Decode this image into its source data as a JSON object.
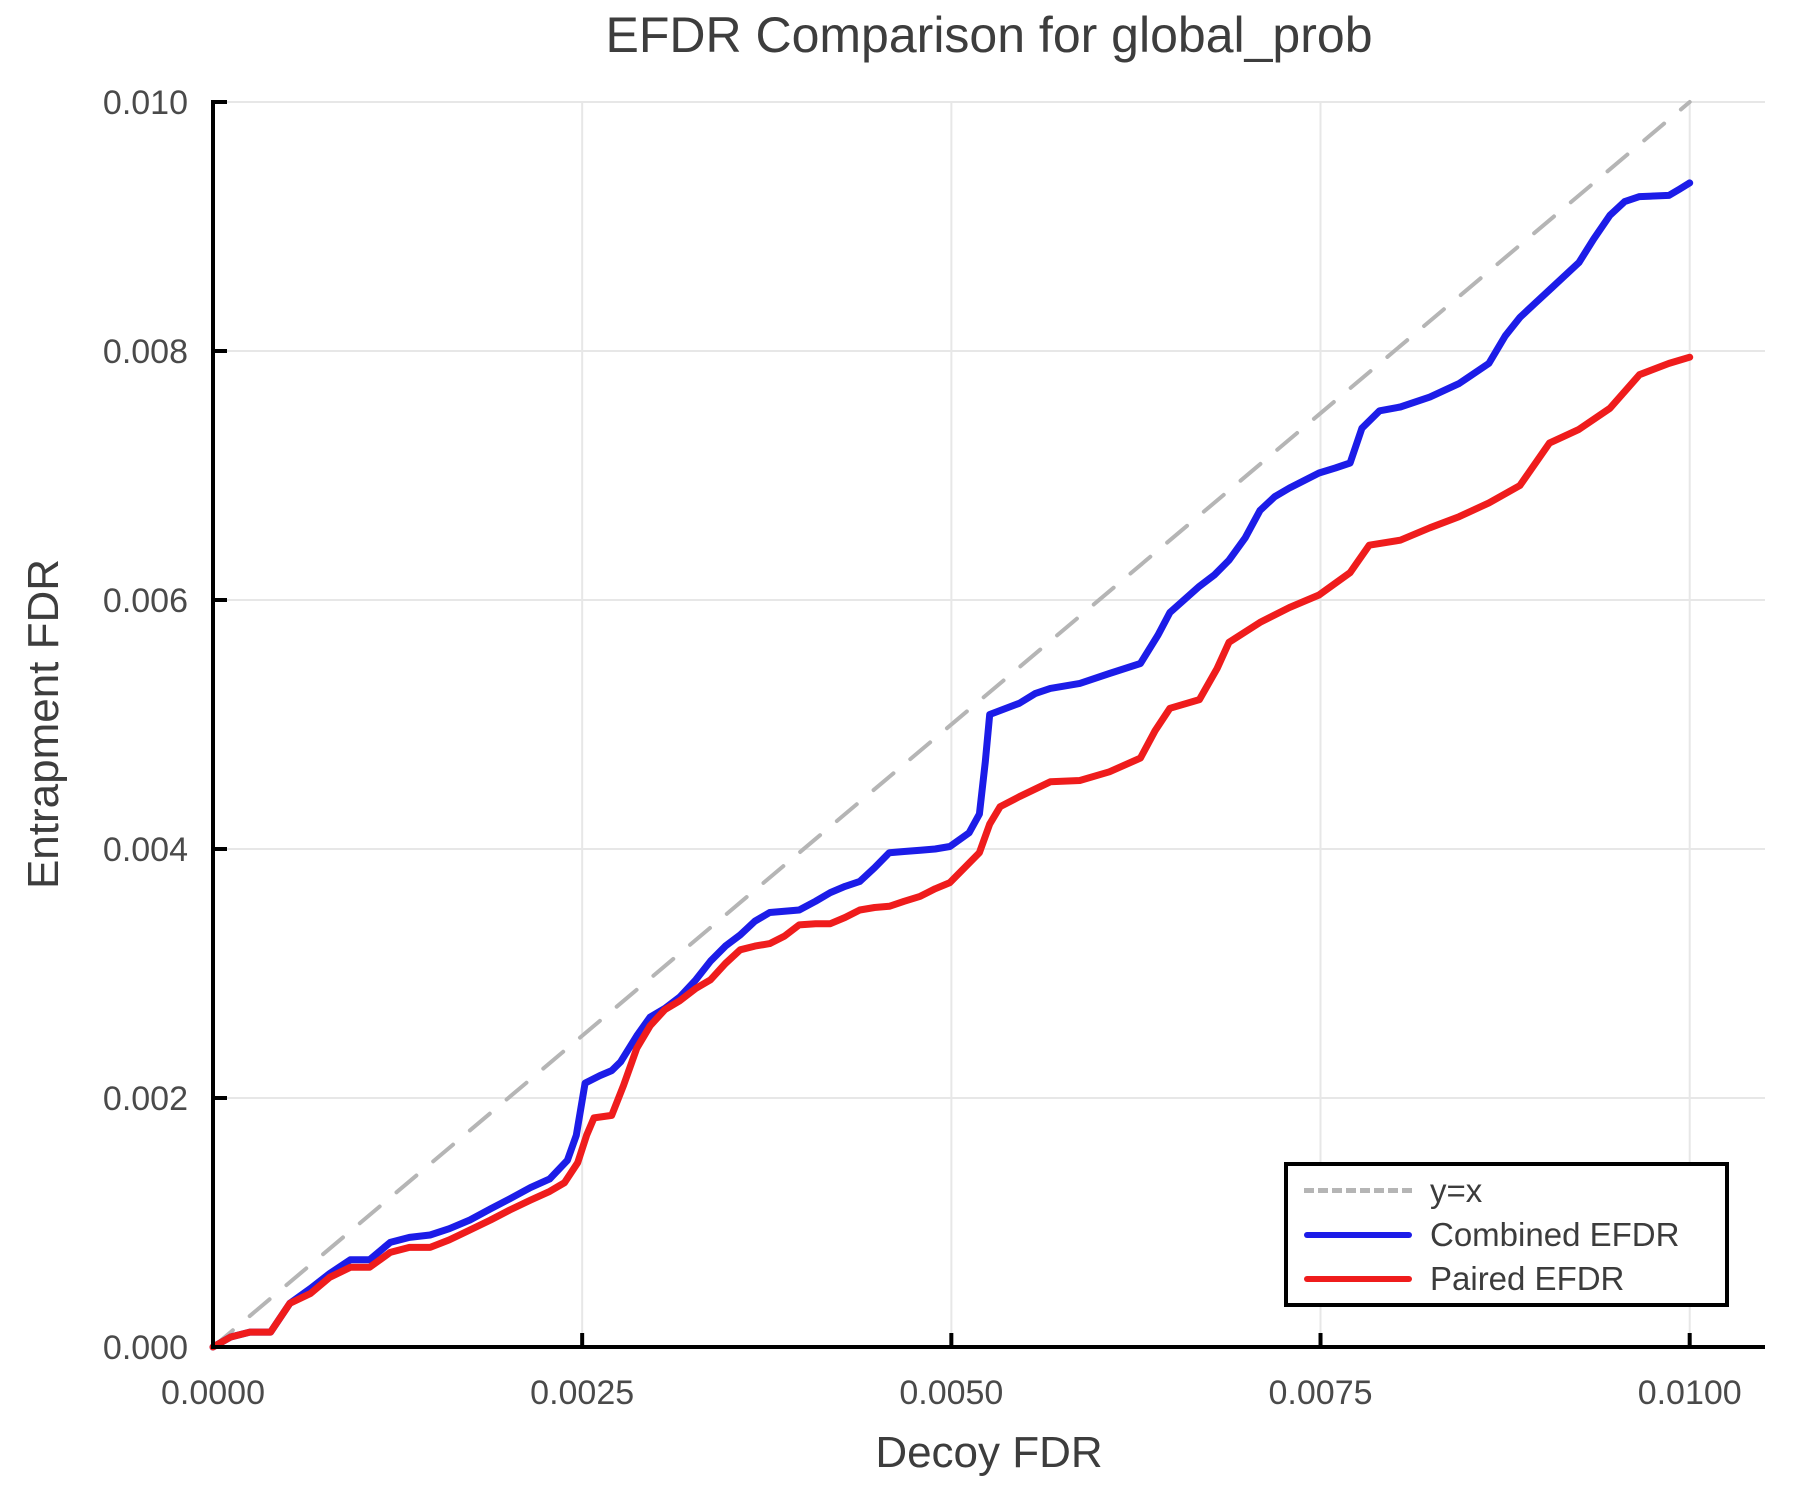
{
  "chart_data": {
    "type": "line",
    "title": "EFDR Comparison for global_prob",
    "xlabel": "Decoy FDR",
    "ylabel": "Entrapment FDR",
    "xlim": [
      0,
      0.01051
    ],
    "ylim": [
      0,
      0.01
    ],
    "grid": true,
    "background": "#ffffff",
    "legend_position": "lower right",
    "colors": {
      "grid": "#e7e7e7",
      "spine": "#000000",
      "tick": "#000000",
      "tick_label": "#4a4a4a",
      "title": "#3d3d3d",
      "axis_label": "#3d3d3d",
      "legend_text": "#3c3c3c",
      "legend_border": "#000000",
      "identity": "#b5b5b5",
      "combined": "#1c1ce8",
      "paired": "#ef1c1c"
    },
    "x_ticks": [
      {
        "label": "0.0000",
        "value": 0
      },
      {
        "label": "0.0025",
        "value": 0.0025
      },
      {
        "label": "0.0050",
        "value": 0.005
      },
      {
        "label": "0.0075",
        "value": 0.0075
      },
      {
        "label": "0.0100",
        "value": 0.01
      }
    ],
    "y_ticks": [
      {
        "label": "0.000",
        "value": 0
      },
      {
        "label": "0.002",
        "value": 0.002
      },
      {
        "label": "0.004",
        "value": 0.004
      },
      {
        "label": "0.006",
        "value": 0.006
      },
      {
        "label": "0.008",
        "value": 0.008
      },
      {
        "label": "0.010",
        "value": 0.01
      }
    ],
    "series": [
      {
        "name": "y=x",
        "style": "dashed",
        "color": "#b5b5b5",
        "width": 4,
        "points": [
          [
            0,
            0
          ],
          [
            0.01,
            0.01
          ]
        ]
      },
      {
        "name": "Combined EFDR",
        "style": "solid",
        "color": "#1c1ce8",
        "width": 7,
        "points": [
          [
            0.0,
            0.0
          ],
          [
            0.00012,
            8e-05
          ],
          [
            0.00025,
            0.00012
          ],
          [
            0.00039,
            0.00012
          ],
          [
            0.00052,
            0.00035
          ],
          [
            0.00066,
            0.00047
          ],
          [
            0.00079,
            0.00059
          ],
          [
            0.00093,
            0.0007
          ],
          [
            0.00106,
            0.0007
          ],
          [
            0.0012,
            0.00084
          ],
          [
            0.00133,
            0.00088
          ],
          [
            0.00147,
            0.0009
          ],
          [
            0.0016,
            0.00095
          ],
          [
            0.00174,
            0.00102
          ],
          [
            0.00188,
            0.00111
          ],
          [
            0.00201,
            0.00119
          ],
          [
            0.00215,
            0.00128
          ],
          [
            0.00228,
            0.00135
          ],
          [
            0.0024,
            0.0015
          ],
          [
            0.00246,
            0.0017
          ],
          [
            0.00252,
            0.00212
          ],
          [
            0.00262,
            0.00218
          ],
          [
            0.0027,
            0.00222
          ],
          [
            0.00276,
            0.00229
          ],
          [
            0.00287,
            0.0025
          ],
          [
            0.00296,
            0.00265
          ],
          [
            0.00306,
            0.00272
          ],
          [
            0.00316,
            0.00281
          ],
          [
            0.00327,
            0.00295
          ],
          [
            0.00337,
            0.0031
          ],
          [
            0.00347,
            0.00322
          ],
          [
            0.00357,
            0.00331
          ],
          [
            0.00367,
            0.00342
          ],
          [
            0.00377,
            0.00349
          ],
          [
            0.00387,
            0.0035
          ],
          [
            0.00397,
            0.00351
          ],
          [
            0.00408,
            0.00358
          ],
          [
            0.00418,
            0.00365
          ],
          [
            0.00428,
            0.0037
          ],
          [
            0.00438,
            0.00374
          ],
          [
            0.00448,
            0.00385
          ],
          [
            0.00458,
            0.00397
          ],
          [
            0.00468,
            0.00398
          ],
          [
            0.00479,
            0.00399
          ],
          [
            0.00489,
            0.004
          ],
          [
            0.00499,
            0.00402
          ],
          [
            0.00512,
            0.00413
          ],
          [
            0.00519,
            0.00428
          ],
          [
            0.00523,
            0.0047
          ],
          [
            0.00526,
            0.00508
          ],
          [
            0.00546,
            0.00517
          ],
          [
            0.00557,
            0.00525
          ],
          [
            0.00567,
            0.00529
          ],
          [
            0.00587,
            0.00533
          ],
          [
            0.00607,
            0.00541
          ],
          [
            0.00628,
            0.00549
          ],
          [
            0.0064,
            0.00572
          ],
          [
            0.00648,
            0.0059
          ],
          [
            0.00668,
            0.00611
          ],
          [
            0.00678,
            0.0062
          ],
          [
            0.00688,
            0.00632
          ],
          [
            0.00699,
            0.0065
          ],
          [
            0.00709,
            0.00672
          ],
          [
            0.00719,
            0.00683
          ],
          [
            0.00729,
            0.0069
          ],
          [
            0.00749,
            0.00702
          ],
          [
            0.0076,
            0.00706
          ],
          [
            0.0077,
            0.0071
          ],
          [
            0.00778,
            0.00738
          ],
          [
            0.0079,
            0.00752
          ],
          [
            0.00804,
            0.00755
          ],
          [
            0.00824,
            0.00763
          ],
          [
            0.00844,
            0.00774
          ],
          [
            0.00864,
            0.0079
          ],
          [
            0.00875,
            0.00812
          ],
          [
            0.00885,
            0.00827
          ],
          [
            0.00895,
            0.00838
          ],
          [
            0.00905,
            0.00849
          ],
          [
            0.00925,
            0.00871
          ],
          [
            0.00935,
            0.0089
          ],
          [
            0.00946,
            0.00909
          ],
          [
            0.00956,
            0.0092
          ],
          [
            0.00966,
            0.00924
          ],
          [
            0.00986,
            0.00925
          ],
          [
            0.00993,
            0.0093
          ],
          [
            0.01,
            0.00935
          ]
        ]
      },
      {
        "name": "Paired EFDR",
        "style": "solid",
        "color": "#ef1c1c",
        "width": 7,
        "points": [
          [
            0.0,
            0.0
          ],
          [
            0.00012,
            8e-05
          ],
          [
            0.00025,
            0.00012
          ],
          [
            0.00039,
            0.00012
          ],
          [
            0.00052,
            0.00035
          ],
          [
            0.00066,
            0.00043
          ],
          [
            0.00079,
            0.00056
          ],
          [
            0.00093,
            0.00064
          ],
          [
            0.00106,
            0.00064
          ],
          [
            0.0012,
            0.00076
          ],
          [
            0.00133,
            0.0008
          ],
          [
            0.00147,
            0.0008
          ],
          [
            0.0016,
            0.00086
          ],
          [
            0.00174,
            0.00094
          ],
          [
            0.00188,
            0.00102
          ],
          [
            0.00201,
            0.0011
          ],
          [
            0.00215,
            0.00118
          ],
          [
            0.00228,
            0.00125
          ],
          [
            0.00238,
            0.00132
          ],
          [
            0.00247,
            0.00148
          ],
          [
            0.00253,
            0.0017
          ],
          [
            0.00258,
            0.00184
          ],
          [
            0.0027,
            0.00186
          ],
          [
            0.00278,
            0.0021
          ],
          [
            0.00287,
            0.0024
          ],
          [
            0.00296,
            0.00258
          ],
          [
            0.00306,
            0.00271
          ],
          [
            0.00316,
            0.00278
          ],
          [
            0.00327,
            0.00288
          ],
          [
            0.00337,
            0.00295
          ],
          [
            0.00347,
            0.00308
          ],
          [
            0.00357,
            0.00319
          ],
          [
            0.00367,
            0.00322
          ],
          [
            0.00377,
            0.00324
          ],
          [
            0.00387,
            0.0033
          ],
          [
            0.00397,
            0.00339
          ],
          [
            0.00408,
            0.0034
          ],
          [
            0.00418,
            0.0034
          ],
          [
            0.00428,
            0.00345
          ],
          [
            0.00438,
            0.00351
          ],
          [
            0.00448,
            0.00353
          ],
          [
            0.00458,
            0.00354
          ],
          [
            0.00468,
            0.00358
          ],
          [
            0.00479,
            0.00362
          ],
          [
            0.00489,
            0.00368
          ],
          [
            0.00499,
            0.00373
          ],
          [
            0.00509,
            0.00385
          ],
          [
            0.00519,
            0.00397
          ],
          [
            0.00526,
            0.0042
          ],
          [
            0.00533,
            0.00434
          ],
          [
            0.00546,
            0.00442
          ],
          [
            0.00567,
            0.00454
          ],
          [
            0.00587,
            0.00455
          ],
          [
            0.00607,
            0.00462
          ],
          [
            0.00628,
            0.00473
          ],
          [
            0.00638,
            0.00495
          ],
          [
            0.00648,
            0.00513
          ],
          [
            0.00668,
            0.0052
          ],
          [
            0.0068,
            0.00545
          ],
          [
            0.00688,
            0.00566
          ],
          [
            0.00709,
            0.00582
          ],
          [
            0.00729,
            0.00594
          ],
          [
            0.00749,
            0.00604
          ],
          [
            0.0077,
            0.00622
          ],
          [
            0.00783,
            0.00644
          ],
          [
            0.00804,
            0.00648
          ],
          [
            0.00824,
            0.00658
          ],
          [
            0.00844,
            0.00667
          ],
          [
            0.00864,
            0.00678
          ],
          [
            0.00885,
            0.00692
          ],
          [
            0.00905,
            0.00726
          ],
          [
            0.00925,
            0.00737
          ],
          [
            0.00946,
            0.00754
          ],
          [
            0.00966,
            0.00781
          ],
          [
            0.00986,
            0.0079
          ],
          [
            0.01,
            0.00795
          ]
        ]
      }
    ]
  }
}
